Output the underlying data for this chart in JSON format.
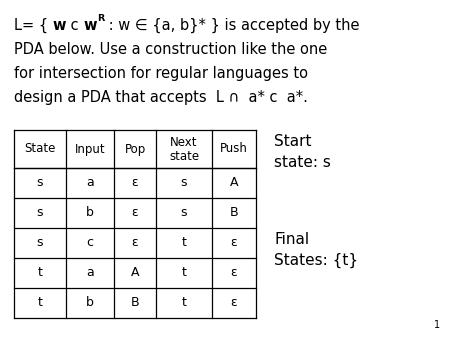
{
  "lines": [
    "L= { w c wᴿ : w ∈ {a, b}* } is accepted by the",
    "PDA below. Use a construction like the one",
    "for intersection for regular languages to",
    "design a PDA that accepts  L ∩  a* c  a*."
  ],
  "table_headers": [
    "State",
    "Input",
    "Pop",
    "Next\nstate",
    "Push"
  ],
  "table_rows": [
    [
      "s",
      "a",
      "ε",
      "s",
      "A"
    ],
    [
      "s",
      "b",
      "ε",
      "s",
      "B"
    ],
    [
      "s",
      "c",
      "ε",
      "t",
      "ε"
    ],
    [
      "t",
      "a",
      "A",
      "t",
      "ε"
    ],
    [
      "t",
      "b",
      "B",
      "t",
      "ε"
    ]
  ],
  "side_text1": "Start\nstate: s",
  "side_text2": "Final\nStates: {t}",
  "bg_color": "#ffffff",
  "text_color": "#000000",
  "page_number": "1"
}
